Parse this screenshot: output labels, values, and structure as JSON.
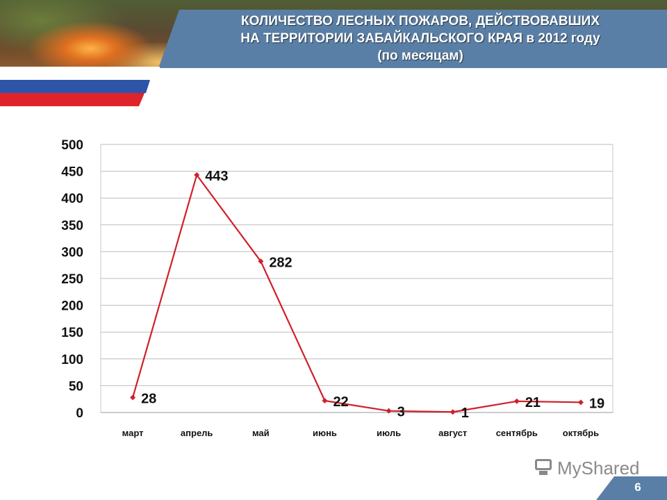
{
  "slide": {
    "title_lines": [
      "КОЛИЧЕСТВО ЛЕСНЫХ ПОЖАРОВ, ДЕЙСТВОВАВШИХ",
      "НА ТЕРРИТОРИИ ЗАБАЙКАЛЬСКОГО КРАЯ  в 2012 году",
      "(по месяцам)"
    ],
    "page_number": "6",
    "watermark": "MyShared",
    "colors": {
      "header_band": "#5a7fa6",
      "flag_blue": "#2e54a8",
      "flag_red": "#e0232a"
    }
  },
  "chart_data": {
    "type": "line",
    "title": "",
    "xlabel": "",
    "ylabel": "",
    "categories": [
      "март",
      "апрель",
      "май",
      "июнь",
      "июль",
      "август",
      "сентябрь",
      "октябрь"
    ],
    "series": [
      {
        "values": [
          28,
          443,
          282,
          22,
          3,
          1,
          21,
          19
        ],
        "color": "#d0202a"
      }
    ],
    "data_labels": [
      "28",
      "443",
      "282",
      "22",
      "3",
      "1",
      "21",
      "19"
    ],
    "ylim": [
      0,
      500
    ],
    "yticks": [
      0,
      50,
      100,
      150,
      200,
      250,
      300,
      350,
      400,
      450,
      500
    ],
    "grid": true,
    "legend": "none"
  }
}
